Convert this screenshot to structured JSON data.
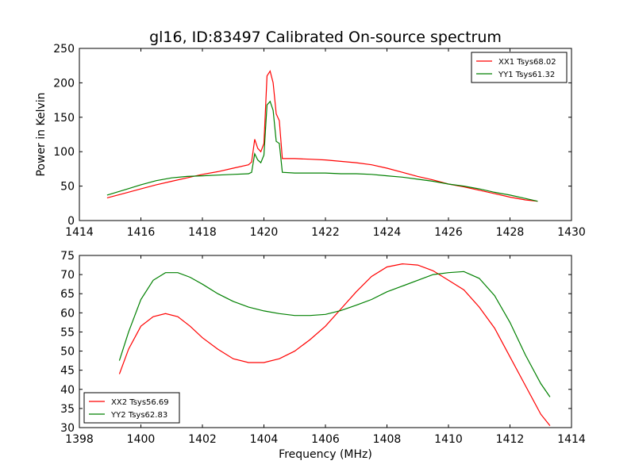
{
  "chart_data": [
    {
      "type": "line",
      "title": "gl16, ID:83497 Calibrated On-source spectrum",
      "xlabel": "",
      "ylabel": "Power in Kelvin",
      "xlim": [
        1414,
        1430
      ],
      "ylim": [
        0,
        250
      ],
      "xticks": [
        1414,
        1416,
        1418,
        1420,
        1422,
        1424,
        1426,
        1428,
        1430
      ],
      "yticks": [
        0,
        50,
        100,
        150,
        200,
        250
      ],
      "grid": false,
      "legend_position": "top-right",
      "series": [
        {
          "name": "XX1 Tsys68.02",
          "color": "#ff0000",
          "x": [
            1414.9,
            1415.5,
            1416.0,
            1416.5,
            1417.0,
            1417.5,
            1418.0,
            1418.5,
            1419.0,
            1419.5,
            1419.6,
            1419.7,
            1419.8,
            1419.9,
            1420.0,
            1420.1,
            1420.2,
            1420.3,
            1420.4,
            1420.5,
            1420.6,
            1421.0,
            1421.5,
            1422.0,
            1422.5,
            1423.0,
            1423.5,
            1424.0,
            1424.5,
            1425.0,
            1425.5,
            1426.0,
            1426.5,
            1427.0,
            1427.5,
            1428.0,
            1428.5,
            1428.9
          ],
          "y": [
            33,
            40,
            46,
            52,
            57,
            62,
            67,
            71,
            76,
            81,
            85,
            118,
            105,
            100,
            112,
            210,
            217,
            200,
            155,
            145,
            90,
            90,
            89,
            88,
            86,
            84,
            81,
            76,
            70,
            64,
            59,
            53,
            49,
            44,
            39,
            34,
            30,
            28
          ]
        },
        {
          "name": "YY1 Tsys61.32",
          "color": "#008000",
          "x": [
            1414.9,
            1415.5,
            1416.0,
            1416.5,
            1417.0,
            1417.5,
            1418.0,
            1418.5,
            1419.0,
            1419.5,
            1419.6,
            1419.7,
            1419.8,
            1419.9,
            1420.0,
            1420.1,
            1420.2,
            1420.3,
            1420.4,
            1420.5,
            1420.6,
            1421.0,
            1421.5,
            1422.0,
            1422.5,
            1423.0,
            1423.5,
            1424.0,
            1424.5,
            1425.0,
            1425.5,
            1426.0,
            1426.5,
            1427.0,
            1427.5,
            1428.0,
            1428.5,
            1428.9
          ],
          "y": [
            37,
            45,
            52,
            58,
            62,
            64,
            65,
            66,
            67,
            68,
            70,
            97,
            88,
            84,
            95,
            168,
            173,
            160,
            115,
            112,
            70,
            69,
            69,
            69,
            68,
            68,
            67,
            65,
            63,
            60,
            57,
            53,
            50,
            46,
            41,
            37,
            32,
            28
          ]
        }
      ]
    },
    {
      "type": "line",
      "title": "",
      "xlabel": "Frequency (MHz)",
      "ylabel": "",
      "xlim": [
        1398,
        1414
      ],
      "ylim": [
        30,
        75
      ],
      "xticks": [
        1398,
        1400,
        1402,
        1404,
        1406,
        1408,
        1410,
        1412,
        1414
      ],
      "yticks": [
        30,
        35,
        40,
        45,
        50,
        55,
        60,
        65,
        70,
        75
      ],
      "grid": false,
      "legend_position": "bottom-left",
      "series": [
        {
          "name": "XX2 Tsys56.69",
          "color": "#ff0000",
          "x": [
            1399.3,
            1399.6,
            1400.0,
            1400.4,
            1400.8,
            1401.2,
            1401.6,
            1402.0,
            1402.5,
            1403.0,
            1403.5,
            1404.0,
            1404.5,
            1405.0,
            1405.5,
            1406.0,
            1406.5,
            1407.0,
            1407.5,
            1408.0,
            1408.5,
            1409.0,
            1409.5,
            1410.0,
            1410.5,
            1411.0,
            1411.5,
            1412.0,
            1412.5,
            1413.0,
            1413.3
          ],
          "y": [
            44,
            50.5,
            56.5,
            59,
            59.8,
            59,
            56.5,
            53.5,
            50.5,
            48,
            47,
            47,
            48,
            50,
            53,
            56.5,
            61,
            65.5,
            69.5,
            72,
            72.8,
            72.5,
            71,
            68.5,
            66,
            61.5,
            56,
            48.5,
            41,
            33.5,
            30.5
          ]
        },
        {
          "name": "YY2 Tsys62.83",
          "color": "#008000",
          "x": [
            1399.3,
            1399.6,
            1400.0,
            1400.4,
            1400.8,
            1401.2,
            1401.6,
            1402.0,
            1402.5,
            1403.0,
            1403.5,
            1404.0,
            1404.5,
            1405.0,
            1405.5,
            1406.0,
            1406.5,
            1407.0,
            1407.5,
            1408.0,
            1408.5,
            1409.0,
            1409.5,
            1410.0,
            1410.5,
            1411.0,
            1411.5,
            1412.0,
            1412.5,
            1413.0,
            1413.3
          ],
          "y": [
            47.5,
            55,
            63.5,
            68.5,
            70.5,
            70.5,
            69.3,
            67.5,
            65,
            63,
            61.5,
            60.5,
            59.8,
            59.3,
            59.3,
            59.6,
            60.6,
            62,
            63.5,
            65.5,
            67,
            68.5,
            70,
            70.5,
            70.8,
            69,
            64.5,
            57.5,
            49,
            41.5,
            38
          ]
        }
      ]
    }
  ]
}
